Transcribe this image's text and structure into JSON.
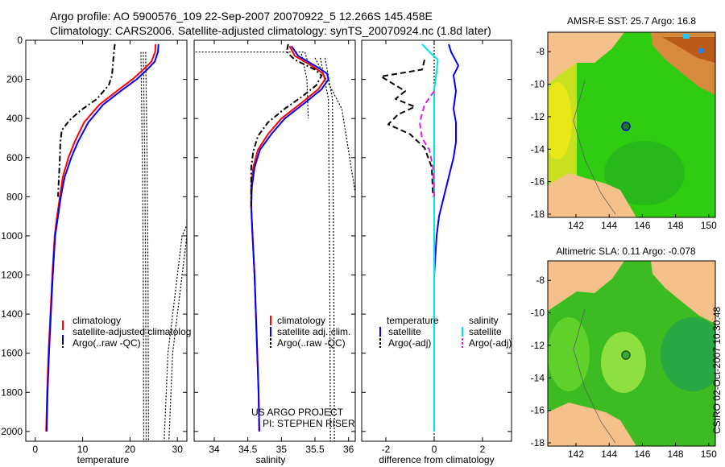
{
  "header": {
    "line1": "Argo profile: AO 5900576_109 22-Sep-2007 20070922_5 12.266S 145.458E",
    "line2": "Climatology: CARS2006. Satellite-adjusted climatology: synTS_20070924.nc (1.8d later)"
  },
  "side_label": "CSIRO 02-Oct-2007 10:30:48",
  "colors": {
    "climatology": "#ff0000",
    "satellite": "#0000ff",
    "argo": "#000000",
    "salinity_satellite": "#00e5e5",
    "salinity_argo": "#e020e0",
    "land": "#f5c08a"
  },
  "chart_data": [
    {
      "type": "line",
      "id": "temperature",
      "xlabel": "temperature",
      "ylabel": "",
      "xlim": [
        -2,
        32
      ],
      "ylim": [
        2050,
        0
      ],
      "xticks": [
        0,
        10,
        20,
        30
      ],
      "yticks": [
        0,
        200,
        400,
        600,
        800,
        1000,
        1200,
        1400,
        1600,
        1800,
        2000
      ],
      "series": [
        {
          "name": "climatology",
          "color": "#ff0000",
          "dash": "",
          "points": [
            [
              25.4,
              20
            ],
            [
              25.3,
              60
            ],
            [
              24.5,
              110
            ],
            [
              22.8,
              150
            ],
            [
              20.5,
              200
            ],
            [
              17.2,
              260
            ],
            [
              13.5,
              330
            ],
            [
              10.3,
              420
            ],
            [
              8.3,
              520
            ],
            [
              7.0,
              600
            ],
            [
              5.8,
              700
            ],
            [
              5.2,
              800
            ],
            [
              4.6,
              900
            ],
            [
              4.1,
              1000
            ],
            [
              3.6,
              1200
            ],
            [
              3.2,
              1400
            ],
            [
              2.8,
              1600
            ],
            [
              2.5,
              1800
            ],
            [
              2.3,
              2000
            ]
          ]
        },
        {
          "name": "satellite-adjusted climatology",
          "color": "#0000ff",
          "dash": "",
          "points": [
            [
              26.0,
              20
            ],
            [
              25.9,
              60
            ],
            [
              25.2,
              110
            ],
            [
              23.6,
              150
            ],
            [
              21.4,
              200
            ],
            [
              18.0,
              260
            ],
            [
              14.3,
              330
            ],
            [
              11.2,
              420
            ],
            [
              9.0,
              520
            ],
            [
              7.6,
              600
            ],
            [
              6.2,
              700
            ],
            [
              5.4,
              800
            ],
            [
              4.8,
              900
            ],
            [
              4.2,
              1000
            ],
            [
              3.7,
              1200
            ],
            [
              3.3,
              1400
            ],
            [
              2.9,
              1600
            ],
            [
              2.6,
              1800
            ],
            [
              2.4,
              2000
            ]
          ]
        },
        {
          "name": "Argo(..raw -QC)",
          "color": "#000000",
          "dash": "7 3 2 3",
          "points": [
            [
              16.8,
              20
            ],
            [
              16.6,
              60
            ],
            [
              16.4,
              120
            ],
            [
              16.2,
              180
            ],
            [
              15.5,
              230
            ],
            [
              13.0,
              300
            ],
            [
              9.5,
              360
            ],
            [
              7.2,
              410
            ],
            [
              5.6,
              460
            ],
            [
              5.3,
              520
            ],
            [
              5.2,
              600
            ],
            [
              5.0,
              700
            ],
            [
              4.8,
              800
            ]
          ]
        }
      ],
      "reference_lines": [
        {
          "color": "#000000",
          "points": [
            [
              22.3,
              60
            ],
            [
              22.6,
              600
            ],
            [
              22.8,
              1200
            ],
            [
              22.9,
              2050
            ]
          ]
        },
        {
          "color": "#000000",
          "points": [
            [
              22.8,
              60
            ],
            [
              23.1,
              600
            ],
            [
              23.3,
              1200
            ],
            [
              23.4,
              2050
            ]
          ]
        },
        {
          "color": "#000000",
          "points": [
            [
              23.3,
              60
            ],
            [
              23.6,
              600
            ],
            [
              23.8,
              1200
            ],
            [
              23.9,
              2050
            ]
          ]
        },
        {
          "color": "#000000",
          "points": [
            [
              40,
              500
            ],
            [
              31,
              1000
            ],
            [
              28,
              1600
            ],
            [
              27.2,
              2050
            ]
          ]
        },
        {
          "color": "#000000",
          "points": [
            [
              41,
              500
            ],
            [
              32,
              1000
            ],
            [
              29,
              1600
            ],
            [
              28.2,
              2050
            ]
          ]
        }
      ],
      "legend": {
        "position": "bottom-right",
        "entries": [
          {
            "label": "climatology",
            "color": "#ff0000"
          },
          {
            "label": "satellite-adjusted climatolog",
            "color": "#0000ff"
          },
          {
            "label": "Argo(..raw -QC)",
            "color": "#000000"
          }
        ]
      }
    },
    {
      "type": "line",
      "id": "salinity",
      "xlabel": "salinity",
      "xlim": [
        33.7,
        36.1
      ],
      "ylim": [
        2050,
        0
      ],
      "xticks": [
        34,
        34.5,
        35,
        35.5,
        36
      ],
      "series": [
        {
          "name": "climatology",
          "color": "#ff0000",
          "dash": "",
          "points": [
            [
              35.12,
              30
            ],
            [
              35.2,
              80
            ],
            [
              35.45,
              130
            ],
            [
              35.62,
              170
            ],
            [
              35.65,
              200
            ],
            [
              35.55,
              250
            ],
            [
              35.3,
              320
            ],
            [
              35.0,
              400
            ],
            [
              34.8,
              480
            ],
            [
              34.65,
              560
            ],
            [
              34.58,
              650
            ],
            [
              34.55,
              750
            ],
            [
              34.55,
              850
            ],
            [
              34.57,
              1000
            ],
            [
              34.6,
              1200
            ],
            [
              34.62,
              1400
            ],
            [
              34.64,
              1600
            ],
            [
              34.66,
              1800
            ],
            [
              34.67,
              2000
            ]
          ]
        },
        {
          "name": "satellite adj. clim.",
          "color": "#0000ff",
          "dash": "",
          "points": [
            [
              35.15,
              30
            ],
            [
              35.25,
              80
            ],
            [
              35.5,
              130
            ],
            [
              35.68,
              170
            ],
            [
              35.7,
              200
            ],
            [
              35.6,
              250
            ],
            [
              35.35,
              320
            ],
            [
              35.05,
              400
            ],
            [
              34.85,
              480
            ],
            [
              34.68,
              560
            ],
            [
              34.6,
              650
            ],
            [
              34.56,
              750
            ],
            [
              34.55,
              850
            ],
            [
              34.57,
              1000
            ],
            [
              34.6,
              1200
            ],
            [
              34.62,
              1400
            ],
            [
              34.64,
              1600
            ],
            [
              34.66,
              1800
            ],
            [
              34.67,
              2000
            ]
          ]
        },
        {
          "name": "Argo(..raw -QC)",
          "color": "#000000",
          "dash": "7 3 2 3",
          "points": [
            [
              35.1,
              20
            ],
            [
              35.08,
              60
            ],
            [
              35.2,
              100
            ],
            [
              35.5,
              150
            ],
            [
              35.6,
              180
            ],
            [
              35.52,
              230
            ],
            [
              35.3,
              290
            ],
            [
              35.05,
              350
            ],
            [
              34.8,
              420
            ],
            [
              34.65,
              490
            ],
            [
              34.58,
              570
            ],
            [
              34.55,
              650
            ],
            [
              34.55,
              750
            ],
            [
              34.55,
              850
            ]
          ]
        }
      ],
      "reference_lines": [
        {
          "color": "#000000",
          "points": [
            [
              33.72,
              60
            ],
            [
              35.35,
              60
            ],
            [
              35.4,
              120
            ]
          ]
        },
        {
          "color": "#000000",
          "points": [
            [
              35.3,
              70
            ],
            [
              35.38,
              200
            ],
            [
              35.4,
              400
            ]
          ]
        },
        {
          "color": "#000000",
          "points": [
            [
              35.58,
              90
            ],
            [
              35.7,
              300
            ],
            [
              35.72,
              1200
            ],
            [
              35.73,
              2050
            ]
          ]
        },
        {
          "color": "#000000",
          "points": [
            [
              35.65,
              90
            ],
            [
              35.76,
              300
            ],
            [
              35.78,
              1200
            ],
            [
              35.79,
              2050
            ]
          ]
        },
        {
          "color": "#000000",
          "points": [
            [
              35.5,
              90
            ],
            [
              35.9,
              350
            ],
            [
              36.1,
              780
            ]
          ]
        }
      ],
      "legend": {
        "position": "bottom-right",
        "entries": [
          {
            "label": "climatology",
            "color": "#ff0000"
          },
          {
            "label": "satellite adj. clim.",
            "color": "#0000ff"
          },
          {
            "label": "Argo(..raw -QC)",
            "color": "#000000"
          }
        ]
      },
      "annotation": [
        "US ARGO PROJECT",
        "PI: STEPHEN RISER"
      ]
    },
    {
      "type": "line",
      "id": "difference",
      "xlabel": "difference from climatology",
      "xlim": [
        -3,
        3.2
      ],
      "ylim": [
        2050,
        0
      ],
      "xticks": [
        -2,
        0,
        2
      ],
      "series": [
        {
          "name": "temperature satellite",
          "color": "#0000ff",
          "dash": "",
          "points": [
            [
              0.6,
              20
            ],
            [
              0.7,
              60
            ],
            [
              1.0,
              130
            ],
            [
              0.8,
              180
            ],
            [
              0.9,
              260
            ],
            [
              0.8,
              350
            ],
            [
              0.9,
              420
            ],
            [
              0.9,
              520
            ],
            [
              0.8,
              600
            ],
            [
              0.6,
              700
            ],
            [
              0.4,
              800
            ],
            [
              0.2,
              900
            ],
            [
              0.1,
              1000
            ],
            [
              0.0,
              1200
            ],
            [
              0.0,
              1600
            ],
            [
              0.0,
              2000
            ]
          ]
        },
        {
          "name": "temperature Argo(-adj)",
          "color": "#000000",
          "dash": "7 4",
          "points": [
            [
              -0.4,
              100
            ],
            [
              -0.5,
              150
            ],
            [
              -2.2,
              185
            ],
            [
              -1.2,
              260
            ],
            [
              -1.6,
              300
            ],
            [
              -0.8,
              340
            ],
            [
              -1.5,
              380
            ],
            [
              -1.9,
              430
            ],
            [
              -1.0,
              480
            ],
            [
              -0.4,
              550
            ],
            [
              -0.1,
              650
            ],
            [
              -0.05,
              800
            ]
          ]
        },
        {
          "name": "salinity satellite",
          "color": "#00e5e5",
          "dash": "",
          "points": [
            [
              -0.5,
              20
            ],
            [
              -0.2,
              60
            ],
            [
              0.15,
              100
            ],
            [
              0.1,
              160
            ],
            [
              0.0,
              250
            ],
            [
              0.0,
              400
            ],
            [
              0.0,
              700
            ],
            [
              0.0,
              1000
            ],
            [
              0.0,
              1400
            ],
            [
              0.0,
              2000
            ]
          ]
        },
        {
          "name": "salinity Argo(-adj)",
          "color": "#e020e0",
          "dash": "7 4",
          "points": [
            [
              0.0,
              260
            ],
            [
              -0.4,
              330
            ],
            [
              -0.6,
              420
            ],
            [
              -0.5,
              500
            ],
            [
              -0.2,
              560
            ],
            [
              -0.05,
              650
            ],
            [
              0.0,
              800
            ]
          ]
        }
      ],
      "reference_lines": [
        {
          "color": "#000000",
          "points": [
            [
              0.0,
              0
            ],
            [
              0.0,
              2050
            ]
          ]
        }
      ],
      "legend": {
        "position": "bottom",
        "headers": [
          "temperature",
          "salinity"
        ],
        "entries": [
          {
            "label": "satellite",
            "color": "#0000ff",
            "col": 0
          },
          {
            "label": "Argo(-adj)",
            "color": "#000000",
            "col": 0
          },
          {
            "label": "satellite",
            "color": "#00e5e5",
            "col": 1
          },
          {
            "label": "Argo(-adj)",
            "color": "#e020e0",
            "col": 1
          }
        ]
      }
    },
    {
      "type": "heatmap",
      "id": "sst_map",
      "title": "AMSR-E SST: 25.7  Argo: 16.8",
      "xlim": [
        140.3,
        150.4
      ],
      "ylim": [
        -18.2,
        -6.8
      ],
      "xticks": [
        142,
        144,
        146,
        148,
        150
      ],
      "yticks": [
        -8,
        -10,
        -12,
        -14,
        -16,
        -18
      ],
      "xticklabels": [
        "142",
        "144",
        "146",
        "148",
        "150"
      ],
      "yticklabels": [
        "-8",
        "-10",
        "-12",
        "-14",
        "-16",
        "-18"
      ],
      "marker": {
        "lon": 145.458,
        "lat": -12.266,
        "fill": "#1a7a1a"
      }
    },
    {
      "type": "heatmap",
      "id": "sla_map",
      "title": "Altimetric SLA: 0.11  Argo: -0.078",
      "xlim": [
        140.3,
        150.4
      ],
      "ylim": [
        -18.2,
        -6.8
      ],
      "xticks": [
        142,
        144,
        146,
        148,
        150
      ],
      "yticks": [
        -8,
        -10,
        -12,
        -14,
        -16,
        -18
      ],
      "xticklabels": [
        "142",
        "144",
        "146",
        "148",
        "150"
      ],
      "yticklabels": [
        "-8",
        "-10",
        "-12",
        "-14",
        "-16",
        "-18"
      ],
      "marker": {
        "lon": 145.458,
        "lat": -12.266,
        "fill": "#3da63d"
      }
    }
  ]
}
